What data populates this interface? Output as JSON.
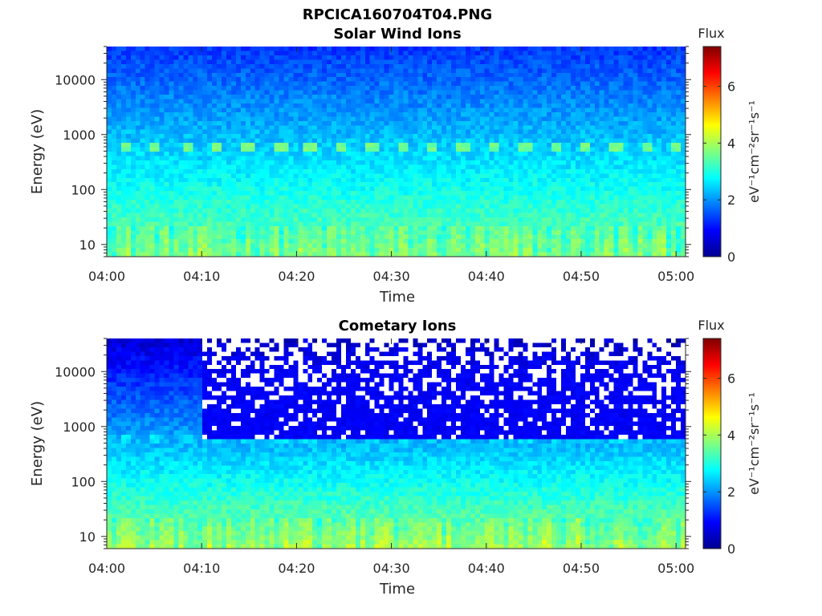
{
  "figure_title": "RPCICA160704T04.PNG",
  "chart_data": [
    {
      "type": "heatmap",
      "title": "Solar Wind Ions",
      "xlabel": "Time",
      "ylabel": "Energy (eV)",
      "x_ticks": [
        "04:00",
        "04:10",
        "04:20",
        "04:30",
        "04:40",
        "04:50",
        "05:00"
      ],
      "xlim": [
        "04:00",
        "05:01"
      ],
      "y_scale": "log",
      "y_ticks": [
        10,
        100,
        1000,
        10000
      ],
      "ylim": [
        6,
        40000
      ],
      "colorbar": {
        "title": "Flux",
        "label": "eV⁻¹cm⁻²sr⁻¹s⁻¹",
        "ticks": [
          0,
          2,
          4,
          6
        ],
        "range": [
          0,
          7.4
        ],
        "colormap": "jet"
      },
      "features": {
        "beam_energy_eV": 550,
        "beam_flux": 3.6,
        "beam_minutes": [
          2.0,
          5.0,
          8.5,
          11.5,
          15.0,
          18.3,
          21.5,
          24.7,
          28.0,
          31.2,
          34.3,
          37.7,
          40.9,
          44.1,
          47.3,
          50.5,
          53.7,
          56.9,
          60.0
        ],
        "background_flux_at_10eV": 3.5,
        "background_flux_at_40000eV": 1.3,
        "white_no_data_region": null
      }
    },
    {
      "type": "heatmap",
      "title": "Cometary Ions",
      "xlabel": "Time",
      "ylabel": "Energy (eV)",
      "x_ticks": [
        "04:00",
        "04:10",
        "04:20",
        "04:30",
        "04:40",
        "04:50",
        "05:00"
      ],
      "xlim": [
        "04:00",
        "05:01"
      ],
      "y_scale": "log",
      "y_ticks": [
        10,
        100,
        1000,
        10000
      ],
      "ylim": [
        6,
        40000
      ],
      "colorbar": {
        "title": "Flux",
        "label": "eV⁻¹cm⁻²sr⁻¹s⁻¹",
        "ticks": [
          0,
          2,
          4,
          6
        ],
        "range": [
          0,
          7.4
        ],
        "colormap": "jet"
      },
      "features": {
        "beam_energy_eV": 550,
        "beam_flux": 2.6,
        "beam_minutes": [
          2.0,
          5.0,
          8.5,
          11.5,
          15.0,
          18.3,
          21.5,
          24.7,
          28.0,
          31.2,
          34.3,
          37.7,
          40.9,
          44.1,
          47.3,
          50.5,
          53.7,
          56.9,
          60.0
        ],
        "background_flux_at_10eV": 3.7,
        "background_flux_at_40000eV": 0.6,
        "white_no_data_region": {
          "start_minute": 10,
          "min_energy_eV": 600
        }
      }
    }
  ]
}
